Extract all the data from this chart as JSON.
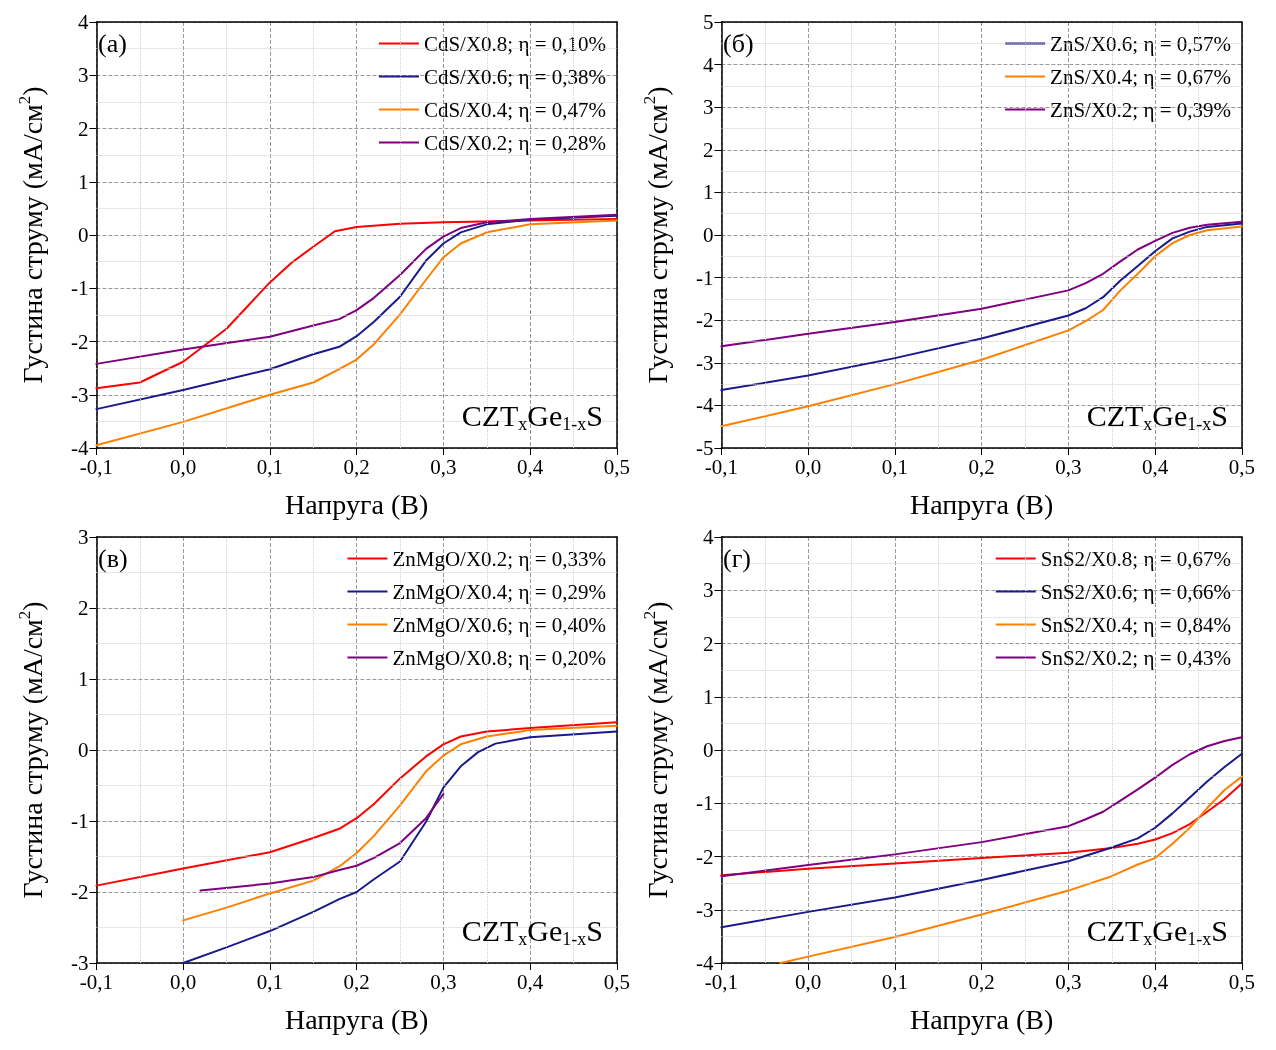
{
  "chart_data": [
    {
      "type": "line",
      "annotations": [
        "(a)",
        "CZT$_{x}$Ge$_{1-x}$S"
      ],
      "xlabel": "Напруга (В)",
      "ylabel": "Густина струму (мА/см$^{2}$)",
      "xlim": [
        -0.1,
        0.5
      ],
      "ylim": [
        -4,
        4
      ],
      "xticks": [
        {
          "value": -0.1,
          "label": "-0,1"
        },
        {
          "value": 0,
          "label": "0,0"
        },
        {
          "value": 0.1,
          "label": "0,1"
        },
        {
          "value": 0.2,
          "label": "0,2"
        },
        {
          "value": 0.3,
          "label": "0,3"
        },
        {
          "value": 0.4,
          "label": "0,4"
        },
        {
          "value": 0.5,
          "label": "0,5"
        }
      ],
      "yticks": [
        -4,
        -3,
        -2,
        -1,
        0,
        1,
        2,
        3,
        4
      ],
      "grid": true,
      "legend": "top right",
      "marker": "none",
      "series": [
        {
          "name": "CdS/X0.8; η = 0,10%",
          "color": "#ff0000",
          "x": [
            -0.1,
            -0.05,
            0,
            0.05,
            0.1,
            0.125,
            0.15,
            0.175,
            0.2,
            0.25,
            0.3,
            0.4,
            0.5
          ],
          "values": [
            -2.88,
            -2.77,
            -2.38,
            -1.76,
            -0.89,
            -0.52,
            -0.22,
            0.07,
            0.15,
            0.21,
            0.24,
            0.27,
            0.3
          ]
        },
        {
          "name": "CdS/X0.6; η = 0,38%",
          "color": "#1a1a8c",
          "x": [
            -0.1,
            0,
            0.1,
            0.15,
            0.18,
            0.2,
            0.22,
            0.25,
            0.28,
            0.3,
            0.32,
            0.35,
            0.4,
            0.5
          ],
          "values": [
            -3.27,
            -2.91,
            -2.52,
            -2.24,
            -2.1,
            -1.9,
            -1.63,
            -1.16,
            -0.48,
            -0.16,
            0.05,
            0.2,
            0.29,
            0.36
          ]
        },
        {
          "name": "CdS/X0.4; η = 0,47%",
          "color": "#ff8000",
          "x": [
            -0.1,
            0,
            0.1,
            0.15,
            0.18,
            0.2,
            0.22,
            0.25,
            0.28,
            0.3,
            0.32,
            0.35,
            0.4,
            0.5
          ],
          "values": [
            -3.95,
            -3.51,
            -3.0,
            -2.77,
            -2.52,
            -2.34,
            -2.05,
            -1.49,
            -0.84,
            -0.42,
            -0.16,
            0.05,
            0.2,
            0.27
          ]
        },
        {
          "name": "CdS/X0.2; η = 0,28%",
          "color": "#800080",
          "x": [
            -0.1,
            0,
            0.1,
            0.15,
            0.18,
            0.2,
            0.22,
            0.25,
            0.28,
            0.3,
            0.32,
            0.35,
            0.4,
            0.5
          ],
          "values": [
            -2.42,
            -2.15,
            -1.91,
            -1.7,
            -1.58,
            -1.41,
            -1.18,
            -0.75,
            -0.26,
            -0.03,
            0.13,
            0.24,
            0.3,
            0.38
          ]
        }
      ]
    },
    {
      "type": "line",
      "annotations": [
        "(б)",
        "CZT$_{x}$Ge$_{1-x}$S"
      ],
      "xlabel": "Напруга (В)",
      "ylabel": "Густина струму (мА/см$^{2}$)",
      "xlim": [
        -0.1,
        0.5
      ],
      "ylim": [
        -5,
        5
      ],
      "xticks": [
        {
          "value": -0.1,
          "label": "-0,1"
        },
        {
          "value": 0,
          "label": "0,0"
        },
        {
          "value": 0.1,
          "label": "0,1"
        },
        {
          "value": 0.2,
          "label": "0,2"
        },
        {
          "value": 0.3,
          "label": "0,3"
        },
        {
          "value": 0.4,
          "label": "0,4"
        },
        {
          "value": 0.5,
          "label": "0,5"
        }
      ],
      "yticks": [
        -5,
        -4,
        -3,
        -2,
        -1,
        0,
        1,
        2,
        3,
        4,
        5
      ],
      "grid": true,
      "legend": "top right",
      "marker": "none",
      "series": [
        {
          "name": "ZnS/X0.6; η = 0,57%",
          "color": "#1a1a8c",
          "x": [
            -0.1,
            0,
            0.1,
            0.2,
            0.3,
            0.32,
            0.34,
            0.36,
            0.38,
            0.4,
            0.42,
            0.44,
            0.46,
            0.5
          ],
          "values": [
            -3.64,
            -3.3,
            -2.89,
            -2.43,
            -1.89,
            -1.72,
            -1.46,
            -1.07,
            -0.73,
            -0.38,
            -0.08,
            0.08,
            0.19,
            0.27
          ]
        },
        {
          "name": "ZnS/X0.4; η = 0,67%",
          "color": "#ff8000",
          "x": [
            -0.1,
            0,
            0.1,
            0.2,
            0.3,
            0.32,
            0.34,
            0.36,
            0.38,
            0.4,
            0.42,
            0.44,
            0.46,
            0.5
          ],
          "values": [
            -4.49,
            -4.02,
            -3.5,
            -2.93,
            -2.24,
            -2.02,
            -1.76,
            -1.3,
            -0.91,
            -0.5,
            -0.19,
            0.0,
            0.11,
            0.2
          ]
        },
        {
          "name": "ZnS/X0.2; η = 0,39%",
          "color": "#800080",
          "x": [
            -0.1,
            0,
            0.1,
            0.2,
            0.3,
            0.32,
            0.34,
            0.36,
            0.38,
            0.4,
            0.42,
            0.44,
            0.46,
            0.5
          ],
          "values": [
            -2.61,
            -2.32,
            -2.04,
            -1.73,
            -1.3,
            -1.13,
            -0.91,
            -0.62,
            -0.34,
            -0.14,
            0.05,
            0.17,
            0.24,
            0.31
          ]
        }
      ]
    },
    {
      "type": "line",
      "annotations": [
        "(в)",
        "CZT$_{x}$Ge$_{1-x}$S"
      ],
      "xlabel": "Напруга (В)",
      "ylabel": "Густина струму (мА/см$^{2}$)",
      "xlim": [
        -0.1,
        0.5
      ],
      "ylim": [
        -3,
        3
      ],
      "xticks": [
        {
          "value": -0.1,
          "label": "-0,1"
        },
        {
          "value": 0,
          "label": "0,0"
        },
        {
          "value": 0.1,
          "label": "0,1"
        },
        {
          "value": 0.2,
          "label": "0,2"
        },
        {
          "value": 0.3,
          "label": "0,3"
        },
        {
          "value": 0.4,
          "label": "0,4"
        },
        {
          "value": 0.5,
          "label": "0,5"
        }
      ],
      "yticks": [
        -3,
        -2,
        -1,
        0,
        1,
        2,
        3
      ],
      "grid": true,
      "legend": "top right",
      "marker": "none",
      "series": [
        {
          "name": "ZnMgO/X0.2; η = 0,33%",
          "color": "#ff0000",
          "x": [
            -0.1,
            0,
            0.1,
            0.15,
            0.18,
            0.2,
            0.22,
            0.25,
            0.28,
            0.3,
            0.32,
            0.35,
            0.4,
            0.5
          ],
          "values": [
            -1.91,
            -1.67,
            -1.44,
            -1.24,
            -1.11,
            -0.96,
            -0.76,
            -0.4,
            -0.09,
            0.08,
            0.19,
            0.26,
            0.31,
            0.39
          ]
        },
        {
          "name": "ZnMgO/X0.4; η = 0,29%",
          "color": "#1a1a8c",
          "x": [
            0,
            0.05,
            0.1,
            0.15,
            0.18,
            0.2,
            0.22,
            0.25,
            0.28,
            0.3,
            0.32,
            0.34,
            0.36,
            0.4,
            0.5
          ],
          "values": [
            -3.0,
            -2.78,
            -2.55,
            -2.28,
            -2.1,
            -2.0,
            -1.82,
            -1.57,
            -1.01,
            -0.53,
            -0.23,
            -0.03,
            0.09,
            0.18,
            0.26
          ]
        },
        {
          "name": "ZnMgO/X0.6; η = 0,40%",
          "color": "#ff8000",
          "x": [
            0,
            0.05,
            0.1,
            0.15,
            0.18,
            0.2,
            0.22,
            0.25,
            0.28,
            0.3,
            0.32,
            0.35,
            0.4,
            0.5
          ],
          "values": [
            -2.4,
            -2.22,
            -2.02,
            -1.84,
            -1.64,
            -1.45,
            -1.21,
            -0.78,
            -0.3,
            -0.08,
            0.08,
            0.19,
            0.28,
            0.34
          ]
        },
        {
          "name": "ZnMgO/X0.8; η = 0,20%",
          "color": "#800080",
          "x": [
            0.02,
            0.1,
            0.15,
            0.18,
            0.2,
            0.22,
            0.25,
            0.28,
            0.3
          ],
          "values": [
            -1.98,
            -1.88,
            -1.79,
            -1.69,
            -1.63,
            -1.52,
            -1.31,
            -0.96,
            -0.62
          ]
        }
      ]
    },
    {
      "type": "line",
      "annotations": [
        "(г)",
        "CZT$_{x}$Ge$_{1-x}$S"
      ],
      "xlabel": "Напруга (В)",
      "ylabel": "Густина струму (мА/см$^{2}$)",
      "xlim": [
        -0.1,
        0.5
      ],
      "ylim": [
        -4,
        4
      ],
      "xticks": [
        {
          "value": -0.1,
          "label": "-0,1"
        },
        {
          "value": 0,
          "label": "0,0"
        },
        {
          "value": 0.1,
          "label": "0,1"
        },
        {
          "value": 0.2,
          "label": "0,2"
        },
        {
          "value": 0.3,
          "label": "0,3"
        },
        {
          "value": 0.4,
          "label": "0,4"
        },
        {
          "value": 0.5,
          "label": "0,5"
        }
      ],
      "yticks": [
        -4,
        -3,
        -2,
        -1,
        0,
        1,
        2,
        3,
        4
      ],
      "grid": true,
      "legend": "top right",
      "marker": "none",
      "series": [
        {
          "name": "SnS2/X0.8; η = 0,67%",
          "color": "#ff0000",
          "x": [
            -0.1,
            0,
            0.1,
            0.2,
            0.3,
            0.35,
            0.38,
            0.4,
            0.42,
            0.44,
            0.46,
            0.48,
            0.5
          ],
          "values": [
            -2.35,
            -2.23,
            -2.13,
            -2.03,
            -1.93,
            -1.84,
            -1.76,
            -1.68,
            -1.56,
            -1.39,
            -1.16,
            -0.92,
            -0.63
          ]
        },
        {
          "name": "SnS2/X0.6; η = 0,66%",
          "color": "#1a1a8c",
          "x": [
            -0.1,
            0,
            0.1,
            0.2,
            0.3,
            0.35,
            0.38,
            0.4,
            0.42,
            0.44,
            0.46,
            0.48,
            0.5
          ],
          "values": [
            -3.33,
            -3.04,
            -2.77,
            -2.44,
            -2.09,
            -1.83,
            -1.66,
            -1.46,
            -1.19,
            -0.89,
            -0.59,
            -0.32,
            -0.07
          ]
        },
        {
          "name": "SnS2/X0.4; η = 0,84%",
          "color": "#ff8000",
          "x": [
            -0.032,
            0,
            0.1,
            0.2,
            0.3,
            0.35,
            0.38,
            0.4,
            0.42,
            0.44,
            0.46,
            0.48,
            0.5
          ],
          "values": [
            -4.0,
            -3.88,
            -3.51,
            -3.09,
            -2.64,
            -2.37,
            -2.15,
            -2.03,
            -1.76,
            -1.46,
            -1.09,
            -0.75,
            -0.5
          ]
        },
        {
          "name": "SnS2/X0.2; η = 0,43%",
          "color": "#800080",
          "x": [
            -0.1,
            0,
            0.1,
            0.2,
            0.3,
            0.32,
            0.34,
            0.36,
            0.38,
            0.4,
            0.42,
            0.44,
            0.46,
            0.48,
            0.5
          ],
          "values": [
            -2.37,
            -2.16,
            -1.96,
            -1.73,
            -1.43,
            -1.3,
            -1.16,
            -0.95,
            -0.74,
            -0.52,
            -0.28,
            -0.08,
            0.07,
            0.17,
            0.24
          ]
        }
      ]
    }
  ]
}
